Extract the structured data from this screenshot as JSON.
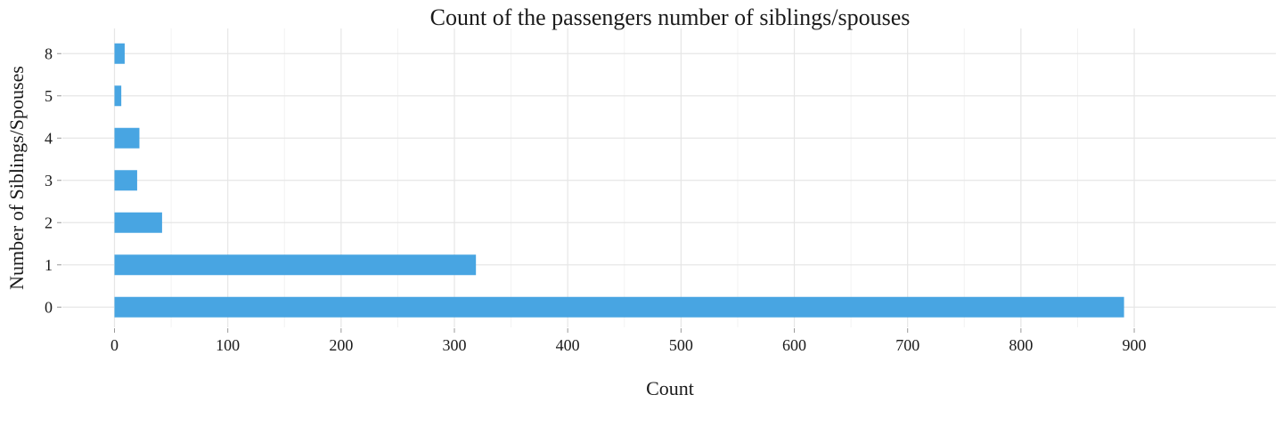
{
  "chart_data": {
    "type": "bar",
    "orientation": "horizontal",
    "title": "Count of the passengers number of siblings/spouses",
    "xlabel": "Count",
    "ylabel": "Number of Siblings/Spouses",
    "categories": [
      "0",
      "1",
      "2",
      "3",
      "4",
      "5",
      "8"
    ],
    "values": [
      891,
      319,
      42,
      20,
      22,
      6,
      9
    ],
    "xlim": [
      -46,
      1025
    ],
    "x_ticks": [
      0,
      100,
      200,
      300,
      400,
      500,
      600,
      700,
      800,
      900
    ],
    "x_tick_labels": [
      "0",
      "100",
      "200",
      "300",
      "400",
      "500",
      "600",
      "700",
      "800",
      "900"
    ],
    "grid": true,
    "legend": "none",
    "colors": {
      "bar": "#48a5e2",
      "grid_major": "#e6e6e6",
      "grid_minor": "#f2f2f2",
      "text": "#1a1a1a",
      "tick": "#999999"
    }
  }
}
